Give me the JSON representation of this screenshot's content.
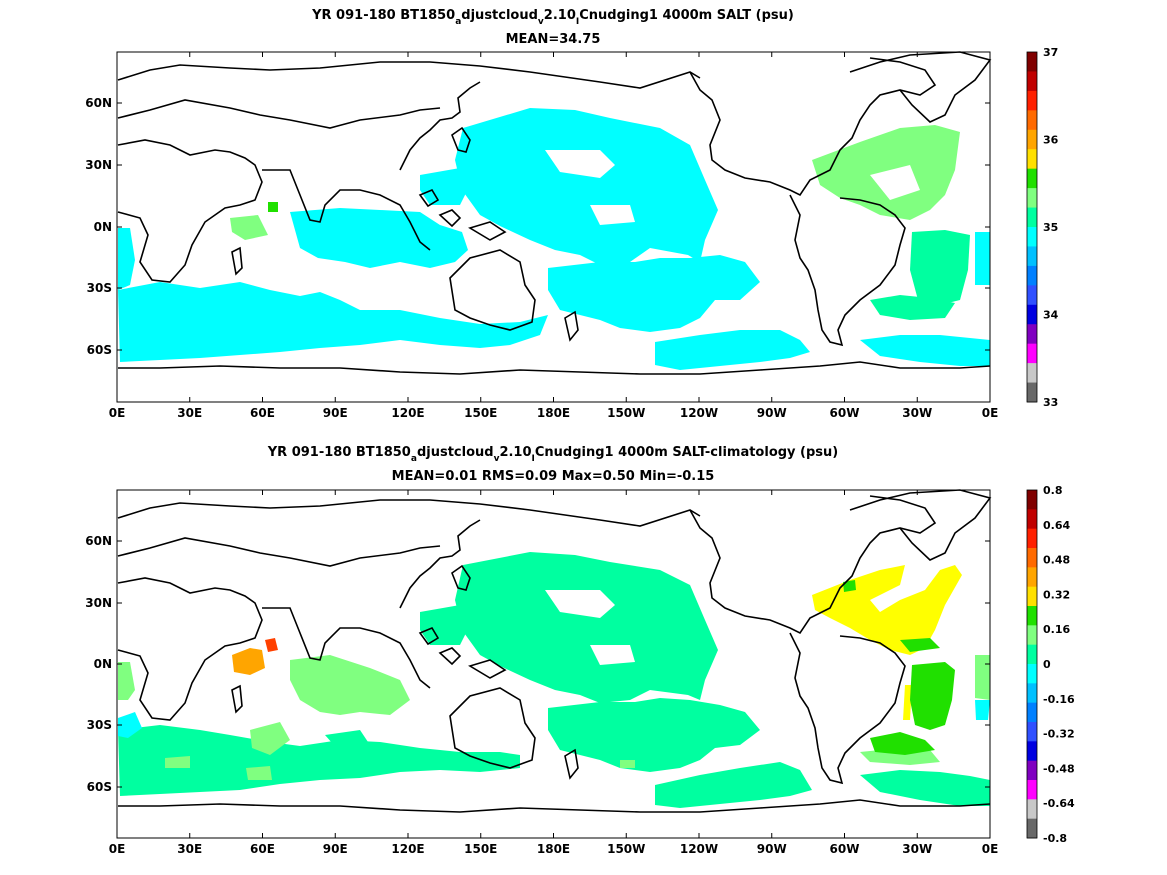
{
  "chart_data": [
    {
      "type": "heatmap",
      "title_parts": [
        "YR 091-180 BT1850",
        "a",
        "djustcloud",
        "v",
        "2.10",
        "I",
        "Cnudging1 4000m SALT (psu)"
      ],
      "subtitle": "MEAN=34.75",
      "x_tick_labels": [
        "0E",
        "30E",
        "60E",
        "90E",
        "120E",
        "150E",
        "180E",
        "150W",
        "120W",
        "90W",
        "60W",
        "30W",
        "0E"
      ],
      "y_tick_labels": [
        "60N",
        "30N",
        "0N",
        "30S",
        "60S"
      ],
      "colorbar": {
        "labels": [
          "37",
          "36",
          "35",
          "34",
          "33"
        ],
        "colors": [
          "#800000",
          "#C00000",
          "#FF2000",
          "#FF6A00",
          "#FFA500",
          "#FFE000",
          "#20E000",
          "#80FF80",
          "#00FFA0",
          "#00FFFF",
          "#00C0FF",
          "#0080FF",
          "#3050FF",
          "#0000E0",
          "#8000C0",
          "#FF00FF",
          "#C8C8C8",
          "#686868"
        ]
      },
      "fields": [
        {
          "name": "cyan",
          "color": "#00FFFF",
          "value_range": "34.75-35.0"
        },
        {
          "name": "green",
          "color": "#00FFA0",
          "value_range": "35.0-35.25"
        },
        {
          "name": "light-green",
          "color": "#80FF80",
          "value_range": "35.25-35.5"
        },
        {
          "name": "green-bright",
          "color": "#20E000",
          "value_range": "35.5-35.75"
        }
      ]
    },
    {
      "type": "heatmap",
      "title_parts": [
        "YR 091-180 BT1850",
        "a",
        "djustcloud",
        "v",
        "2.10",
        "I",
        "Cnudging1 4000m SALT-climatology (psu)"
      ],
      "subtitle": "MEAN=0.01   RMS=0.09   Max=0.50   Min=-0.15",
      "x_tick_labels": [
        "0E",
        "30E",
        "60E",
        "90E",
        "120E",
        "150E",
        "180E",
        "150W",
        "120W",
        "90W",
        "60W",
        "30W",
        "0E"
      ],
      "y_tick_labels": [
        "60N",
        "30N",
        "0N",
        "30S",
        "60S"
      ],
      "colorbar": {
        "labels": [
          "0.8",
          "0.64",
          "0.48",
          "0.32",
          "0.16",
          "0",
          "-0.16",
          "-0.32",
          "-0.48",
          "-0.64",
          "-0.8"
        ],
        "colors": [
          "#800000",
          "#C00000",
          "#FF2000",
          "#FF6A00",
          "#FFA500",
          "#FFE000",
          "#20E000",
          "#80FF80",
          "#00FFA0",
          "#00FFFF",
          "#00C0FF",
          "#0080FF",
          "#3050FF",
          "#0000E0",
          "#8000C0",
          "#FF00FF",
          "#C8C8C8",
          "#686868"
        ]
      },
      "fields": [
        {
          "name": "green",
          "color": "#00FFA0",
          "value_range": "-0.16-0"
        },
        {
          "name": "light-green",
          "color": "#80FF80",
          "value_range": "0-0.08"
        },
        {
          "name": "yellow",
          "color": "#FFFF00",
          "value_range": "0.24-0.32"
        },
        {
          "name": "green-bright",
          "color": "#20E000",
          "value_range": "0.08-0.16"
        },
        {
          "name": "orange",
          "color": "#FFA500",
          "value_range": "0.32-0.40"
        },
        {
          "name": "red-orange",
          "color": "#FF4000",
          "value_range": "0.48-0.56"
        },
        {
          "name": "cyan",
          "color": "#00FFFF",
          "value_range": "-0.16 to -0.08"
        }
      ]
    }
  ]
}
